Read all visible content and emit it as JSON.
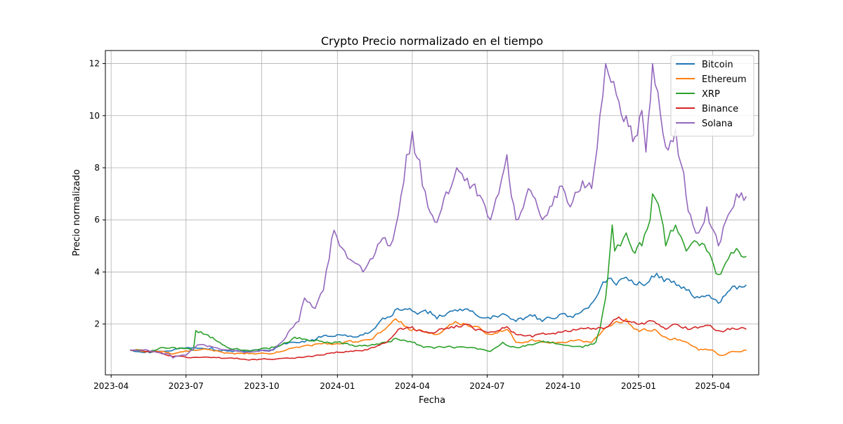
{
  "chart_data": {
    "type": "line",
    "title": "Crypto Precio normalizado en el tiempo",
    "xlabel": "Fecha",
    "ylabel": "Precio normalizado",
    "xlim": [
      "2023-03-25",
      "2025-05-27"
    ],
    "ylim": [
      0.05,
      12.5
    ],
    "grid": true,
    "legend_position": "top-right",
    "x_ticks": [
      "2023-04",
      "2023-07",
      "2023-10",
      "2024-01",
      "2024-04",
      "2024-07",
      "2024-10",
      "2025-01",
      "2025-04"
    ],
    "y_ticks": [
      2,
      4,
      6,
      8,
      10,
      12
    ],
    "series": [
      {
        "name": "Bitcoin",
        "color": "#1f77b4",
        "points": [
          [
            "2023-04-24",
            1.0
          ],
          [
            "2023-05-15",
            0.95
          ],
          [
            "2023-06-01",
            0.95
          ],
          [
            "2023-06-20",
            1.05
          ],
          [
            "2023-07-10",
            1.1
          ],
          [
            "2023-08-01",
            1.1
          ],
          [
            "2023-08-15",
            1.0
          ],
          [
            "2023-09-10",
            0.95
          ],
          [
            "2023-10-01",
            1.0
          ],
          [
            "2023-10-15",
            1.0
          ],
          [
            "2023-10-25",
            1.2
          ],
          [
            "2023-11-10",
            1.3
          ],
          [
            "2023-12-01",
            1.4
          ],
          [
            "2023-12-15",
            1.55
          ],
          [
            "2024-01-01",
            1.6
          ],
          [
            "2024-01-20",
            1.5
          ],
          [
            "2024-02-10",
            1.7
          ],
          [
            "2024-02-28",
            2.2
          ],
          [
            "2024-03-14",
            2.6
          ],
          [
            "2024-04-01",
            2.5
          ],
          [
            "2024-04-20",
            2.4
          ],
          [
            "2024-05-01",
            2.2
          ],
          [
            "2024-05-20",
            2.5
          ],
          [
            "2024-06-10",
            2.5
          ],
          [
            "2024-07-05",
            2.2
          ],
          [
            "2024-07-20",
            2.4
          ],
          [
            "2024-08-05",
            2.1
          ],
          [
            "2024-08-25",
            2.3
          ],
          [
            "2024-09-06",
            2.1
          ],
          [
            "2024-09-30",
            2.4
          ],
          [
            "2024-10-10",
            2.3
          ],
          [
            "2024-10-29",
            2.6
          ],
          [
            "2024-11-10",
            3.0
          ],
          [
            "2024-11-22",
            3.6
          ],
          [
            "2024-12-05",
            3.5
          ],
          [
            "2024-12-17",
            3.8
          ],
          [
            "2024-12-30",
            3.5
          ],
          [
            "2025-01-20",
            3.8
          ],
          [
            "2025-02-10",
            3.6
          ],
          [
            "2025-02-28",
            3.3
          ],
          [
            "2025-03-10",
            3.0
          ],
          [
            "2025-03-25",
            3.1
          ],
          [
            "2025-04-08",
            2.8
          ],
          [
            "2025-04-22",
            3.3
          ],
          [
            "2025-05-12",
            3.5
          ]
        ]
      },
      {
        "name": "Ethereum",
        "color": "#ff7f0e",
        "points": [
          [
            "2023-04-24",
            1.0
          ],
          [
            "2023-05-15",
            0.95
          ],
          [
            "2023-06-01",
            0.95
          ],
          [
            "2023-06-15",
            0.85
          ],
          [
            "2023-07-10",
            1.0
          ],
          [
            "2023-08-01",
            1.0
          ],
          [
            "2023-08-20",
            0.9
          ],
          [
            "2023-09-10",
            0.85
          ],
          [
            "2023-10-10",
            0.85
          ],
          [
            "2023-10-25",
            0.95
          ],
          [
            "2023-11-10",
            1.1
          ],
          [
            "2023-12-10",
            1.25
          ],
          [
            "2024-01-01",
            1.25
          ],
          [
            "2024-01-20",
            1.3
          ],
          [
            "2024-02-10",
            1.4
          ],
          [
            "2024-02-28",
            1.8
          ],
          [
            "2024-03-12",
            2.2
          ],
          [
            "2024-03-25",
            1.9
          ],
          [
            "2024-04-15",
            1.7
          ],
          [
            "2024-05-01",
            1.6
          ],
          [
            "2024-05-20",
            2.0
          ],
          [
            "2024-06-05",
            2.0
          ],
          [
            "2024-06-20",
            1.9
          ],
          [
            "2024-07-05",
            1.6
          ],
          [
            "2024-07-25",
            1.8
          ],
          [
            "2024-08-05",
            1.3
          ],
          [
            "2024-08-25",
            1.4
          ],
          [
            "2024-09-06",
            1.3
          ],
          [
            "2024-10-01",
            1.3
          ],
          [
            "2024-10-20",
            1.4
          ],
          [
            "2024-11-05",
            1.3
          ],
          [
            "2024-11-15",
            1.6
          ],
          [
            "2024-12-05",
            2.1
          ],
          [
            "2024-12-17",
            2.2
          ],
          [
            "2024-12-30",
            1.8
          ],
          [
            "2025-01-20",
            1.8
          ],
          [
            "2025-02-03",
            1.5
          ],
          [
            "2025-02-20",
            1.4
          ],
          [
            "2025-03-05",
            1.2
          ],
          [
            "2025-03-15",
            1.0
          ],
          [
            "2025-04-01",
            1.0
          ],
          [
            "2025-04-10",
            0.8
          ],
          [
            "2025-04-25",
            0.95
          ],
          [
            "2025-05-12",
            1.0
          ]
        ]
      },
      {
        "name": "XRP",
        "color": "#2ca02c",
        "points": [
          [
            "2023-04-24",
            1.0
          ],
          [
            "2023-05-15",
            0.95
          ],
          [
            "2023-06-01",
            1.1
          ],
          [
            "2023-06-20",
            1.05
          ],
          [
            "2023-07-10",
            1.0
          ],
          [
            "2023-07-13",
            1.75
          ],
          [
            "2023-07-25",
            1.6
          ],
          [
            "2023-08-05",
            1.4
          ],
          [
            "2023-08-20",
            1.1
          ],
          [
            "2023-09-10",
            1.0
          ],
          [
            "2023-10-10",
            1.05
          ],
          [
            "2023-10-25",
            1.2
          ],
          [
            "2023-11-10",
            1.5
          ],
          [
            "2023-11-25",
            1.4
          ],
          [
            "2023-12-10",
            1.35
          ],
          [
            "2024-01-01",
            1.3
          ],
          [
            "2024-01-25",
            1.15
          ],
          [
            "2024-02-15",
            1.2
          ],
          [
            "2024-03-01",
            1.3
          ],
          [
            "2024-03-12",
            1.45
          ],
          [
            "2024-04-01",
            1.3
          ],
          [
            "2024-04-15",
            1.1
          ],
          [
            "2024-05-10",
            1.1
          ],
          [
            "2024-06-10",
            1.1
          ],
          [
            "2024-07-05",
            0.95
          ],
          [
            "2024-07-20",
            1.3
          ],
          [
            "2024-08-05",
            1.1
          ],
          [
            "2024-08-25",
            1.2
          ],
          [
            "2024-09-10",
            1.3
          ],
          [
            "2024-10-01",
            1.2
          ],
          [
            "2024-10-25",
            1.1
          ],
          [
            "2024-11-10",
            1.3
          ],
          [
            "2024-11-15",
            1.8
          ],
          [
            "2024-11-22",
            3.0
          ],
          [
            "2024-11-30",
            5.8
          ],
          [
            "2024-12-03",
            4.8
          ],
          [
            "2024-12-10",
            5.0
          ],
          [
            "2024-12-17",
            5.5
          ],
          [
            "2024-12-25",
            4.8
          ],
          [
            "2025-01-05",
            5.0
          ],
          [
            "2025-01-15",
            6.0
          ],
          [
            "2025-01-18",
            7.0
          ],
          [
            "2025-01-25",
            6.6
          ],
          [
            "2025-02-03",
            5.0
          ],
          [
            "2025-02-15",
            5.8
          ],
          [
            "2025-02-28",
            4.8
          ],
          [
            "2025-03-10",
            5.2
          ],
          [
            "2025-03-25",
            4.8
          ],
          [
            "2025-04-08",
            3.9
          ],
          [
            "2025-04-20",
            4.5
          ],
          [
            "2025-04-30",
            4.9
          ],
          [
            "2025-05-12",
            4.6
          ]
        ]
      },
      {
        "name": "Binance",
        "color": "#d62728",
        "points": [
          [
            "2023-04-24",
            1.0
          ],
          [
            "2023-05-15",
            0.95
          ],
          [
            "2023-06-01",
            0.9
          ],
          [
            "2023-06-15",
            0.75
          ],
          [
            "2023-07-10",
            0.72
          ],
          [
            "2023-08-10",
            0.72
          ],
          [
            "2023-09-10",
            0.65
          ],
          [
            "2023-10-10",
            0.65
          ],
          [
            "2023-11-01",
            0.7
          ],
          [
            "2023-12-01",
            0.75
          ],
          [
            "2023-12-25",
            0.9
          ],
          [
            "2024-01-20",
            0.95
          ],
          [
            "2024-02-15",
            1.1
          ],
          [
            "2024-03-01",
            1.3
          ],
          [
            "2024-03-15",
            1.8
          ],
          [
            "2024-04-01",
            1.9
          ],
          [
            "2024-04-15",
            1.7
          ],
          [
            "2024-05-10",
            1.8
          ],
          [
            "2024-06-05",
            2.0
          ],
          [
            "2024-06-20",
            1.8
          ],
          [
            "2024-07-05",
            1.7
          ],
          [
            "2024-07-25",
            1.9
          ],
          [
            "2024-08-05",
            1.6
          ],
          [
            "2024-08-25",
            1.5
          ],
          [
            "2024-09-10",
            1.6
          ],
          [
            "2024-10-01",
            1.7
          ],
          [
            "2024-10-20",
            1.8
          ],
          [
            "2024-11-10",
            1.8
          ],
          [
            "2024-11-25",
            1.9
          ],
          [
            "2024-12-05",
            2.2
          ],
          [
            "2024-12-17",
            2.1
          ],
          [
            "2024-12-30",
            2.0
          ],
          [
            "2025-01-20",
            2.1
          ],
          [
            "2025-02-03",
            1.8
          ],
          [
            "2025-02-15",
            2.0
          ],
          [
            "2025-03-05",
            1.8
          ],
          [
            "2025-03-20",
            1.9
          ],
          [
            "2025-04-08",
            1.75
          ],
          [
            "2025-04-25",
            1.85
          ],
          [
            "2025-05-12",
            1.8
          ]
        ]
      },
      {
        "name": "Solana",
        "color": "#9467bd",
        "points": [
          [
            "2023-04-24",
            1.0
          ],
          [
            "2023-05-15",
            1.0
          ],
          [
            "2023-06-10",
            0.85
          ],
          [
            "2023-06-15",
            0.7
          ],
          [
            "2023-07-01",
            0.8
          ],
          [
            "2023-07-15",
            1.2
          ],
          [
            "2023-08-05",
            1.1
          ],
          [
            "2023-08-20",
            1.0
          ],
          [
            "2023-09-10",
            0.9
          ],
          [
            "2023-10-01",
            1.0
          ],
          [
            "2023-10-10",
            0.95
          ],
          [
            "2023-10-25",
            1.3
          ],
          [
            "2023-11-05",
            1.8
          ],
          [
            "2023-11-15",
            2.1
          ],
          [
            "2023-11-22",
            3.0
          ],
          [
            "2023-12-05",
            2.6
          ],
          [
            "2023-12-15",
            3.3
          ],
          [
            "2023-12-22",
            4.5
          ],
          [
            "2023-12-28",
            5.6
          ],
          [
            "2024-01-10",
            4.8
          ],
          [
            "2024-01-20",
            4.4
          ],
          [
            "2024-02-01",
            4.0
          ],
          [
            "2024-02-10",
            4.5
          ],
          [
            "2024-02-25",
            5.3
          ],
          [
            "2024-03-05",
            5.0
          ],
          [
            "2024-03-15",
            6.2
          ],
          [
            "2024-03-25",
            8.5
          ],
          [
            "2024-04-01",
            9.4
          ],
          [
            "2024-04-10",
            8.3
          ],
          [
            "2024-04-20",
            6.5
          ],
          [
            "2024-05-01",
            5.9
          ],
          [
            "2024-05-15",
            7.0
          ],
          [
            "2024-05-25",
            8.0
          ],
          [
            "2024-06-10",
            7.2
          ],
          [
            "2024-06-25",
            6.8
          ],
          [
            "2024-07-05",
            6.0
          ],
          [
            "2024-07-15",
            7.0
          ],
          [
            "2024-07-25",
            8.5
          ],
          [
            "2024-08-05",
            6.0
          ],
          [
            "2024-08-20",
            7.2
          ],
          [
            "2024-09-06",
            6.0
          ],
          [
            "2024-09-15",
            6.5
          ],
          [
            "2024-09-30",
            7.3
          ],
          [
            "2024-10-10",
            6.5
          ],
          [
            "2024-10-25",
            7.5
          ],
          [
            "2024-11-05",
            7.2
          ],
          [
            "2024-11-15",
            10.0
          ],
          [
            "2024-11-22",
            12.0
          ],
          [
            "2024-12-05",
            10.8
          ],
          [
            "2024-12-17",
            10.0
          ],
          [
            "2024-12-25",
            9.0
          ],
          [
            "2025-01-05",
            10.2
          ],
          [
            "2025-01-10",
            8.6
          ],
          [
            "2025-01-18",
            12.0
          ],
          [
            "2025-02-03",
            8.8
          ],
          [
            "2025-02-15",
            9.5
          ],
          [
            "2025-02-25",
            7.8
          ],
          [
            "2025-03-05",
            6.2
          ],
          [
            "2025-03-15",
            5.5
          ],
          [
            "2025-03-25",
            6.5
          ],
          [
            "2025-04-08",
            5.0
          ],
          [
            "2025-04-20",
            6.2
          ],
          [
            "2025-04-30",
            7.0
          ],
          [
            "2025-05-12",
            6.9
          ]
        ]
      }
    ]
  }
}
